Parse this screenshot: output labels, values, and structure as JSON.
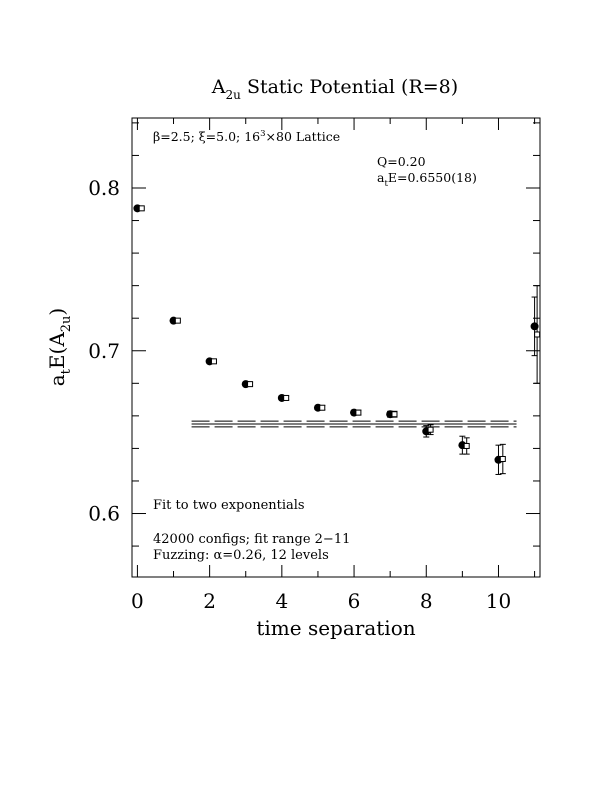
{
  "chart_data": {
    "type": "scatter",
    "title": {
      "main": "A",
      "sub": "2u",
      "rest": " Static Potential (R=8)"
    },
    "xlabel": "time separation",
    "ylabel": {
      "pre": "a",
      "pre_sub": "t",
      "mid": "E(A",
      "mid_sub": "2u",
      "post": ")"
    },
    "xlim": [
      -0.15,
      11.15
    ],
    "ylim": [
      0.561,
      0.843
    ],
    "xticks": [
      0,
      2,
      4,
      6,
      8,
      10
    ],
    "xtick_labels": [
      "0",
      "2",
      "4",
      "6",
      "8",
      "10"
    ],
    "yticks": [
      0.6,
      0.7,
      0.8
    ],
    "ytick_labels": [
      "0.6",
      "0.7",
      "0.8"
    ],
    "annotations": {
      "lattice": {
        "beta": "β",
        "a": "=2.5; ",
        "xi": "ξ",
        "b": "=5.0; 16",
        "sup": "3",
        "c": "×80 Lattice"
      },
      "q": "Q=0.20",
      "energy": {
        "a": "a",
        "sub": "t",
        "b": "E=0.6550(18)"
      },
      "fit_note": "Fit to two exponentials",
      "configs": "42000 configs; fit range 2−11",
      "fuzzing": {
        "a": "Fuzzing: ",
        "alpha": "α",
        "b": "=0.26, 12 levels"
      }
    },
    "series": [
      {
        "marker": "filled-circle",
        "x": [
          0,
          1,
          2,
          3,
          4,
          5,
          6,
          7,
          8,
          9,
          10,
          11
        ],
        "y": [
          0.7875,
          0.7185,
          0.6935,
          0.6795,
          0.671,
          0.665,
          0.662,
          0.661,
          0.6505,
          0.642,
          0.633,
          0.715
        ],
        "err": [
          0.0009,
          0.0009,
          0.001,
          0.0011,
          0.0012,
          0.0013,
          0.0015,
          0.0018,
          0.0035,
          0.0055,
          0.009,
          0.018
        ]
      },
      {
        "marker": "open-square",
        "x": [
          0.12,
          1.12,
          2.12,
          3.12,
          4.12,
          5.12,
          6.12,
          7.12,
          8.12,
          9.12,
          10.12,
          11.07
        ],
        "y": [
          0.7875,
          0.7185,
          0.6935,
          0.6795,
          0.671,
          0.665,
          0.662,
          0.661,
          0.6515,
          0.6415,
          0.6335,
          0.71
        ],
        "err": [
          0.0009,
          0.0009,
          0.001,
          0.0011,
          0.0012,
          0.0013,
          0.0015,
          0.0018,
          0.003,
          0.005,
          0.009,
          0.03
        ]
      }
    ],
    "fit": {
      "value": 0.655,
      "error": 0.0018,
      "x_range": [
        1.5,
        10.5
      ]
    }
  }
}
